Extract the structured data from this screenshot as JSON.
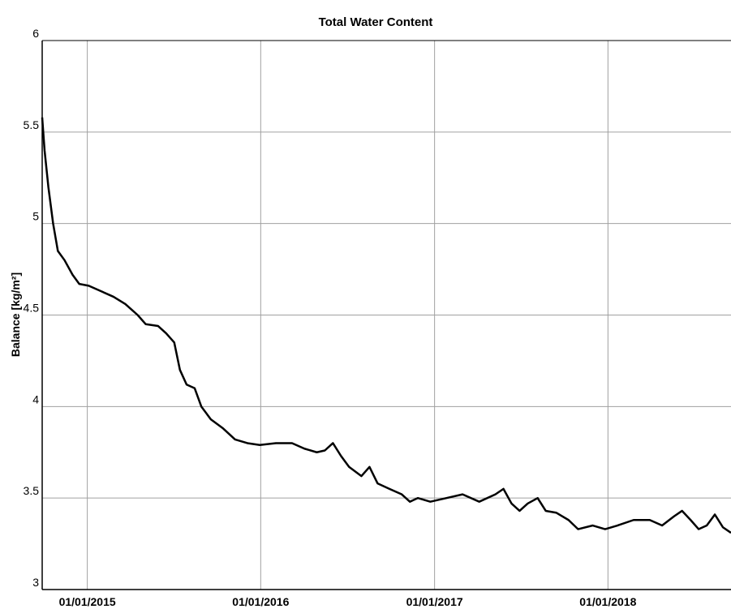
{
  "chart_data": {
    "type": "line",
    "title": "Total Water Content",
    "y_label": "Balance [kg/m²]",
    "x": [
      "2014-09-28",
      "2014-10-03",
      "2014-10-11",
      "2014-10-21",
      "2014-10-31",
      "2014-11-14",
      "2014-12-01",
      "2014-12-15",
      "2015-01-04",
      "2015-01-30",
      "2015-02-25",
      "2015-03-22",
      "2015-04-17",
      "2015-05-04",
      "2015-05-30",
      "2015-06-16",
      "2015-07-03",
      "2015-07-15",
      "2015-07-29",
      "2015-08-15",
      "2015-08-29",
      "2015-09-18",
      "2015-10-14",
      "2015-11-08",
      "2015-12-04",
      "2015-12-30",
      "2016-02-02",
      "2016-03-07",
      "2016-04-02",
      "2016-04-28",
      "2016-05-15",
      "2016-06-01",
      "2016-06-18",
      "2016-07-05",
      "2016-07-31",
      "2016-08-17",
      "2016-09-03",
      "2016-09-28",
      "2016-10-24",
      "2016-11-10",
      "2016-11-27",
      "2016-12-23",
      "2017-01-26",
      "2017-03-01",
      "2017-04-05",
      "2017-05-09",
      "2017-05-26",
      "2017-06-12",
      "2017-06-29",
      "2017-07-16",
      "2017-08-06",
      "2017-08-23",
      "2017-09-14",
      "2017-10-10",
      "2017-10-30",
      "2017-11-30",
      "2017-12-26",
      "2018-01-21",
      "2018-02-24",
      "2018-03-30",
      "2018-04-25",
      "2018-05-20",
      "2018-06-06",
      "2018-06-24",
      "2018-07-11",
      "2018-07-28",
      "2018-08-14",
      "2018-08-31",
      "2018-09-17"
    ],
    "series": [
      {
        "name": "Total Water Content",
        "color": "#000000",
        "values": [
          5.58,
          5.4,
          5.2,
          5.0,
          4.85,
          4.8,
          4.72,
          4.67,
          4.66,
          4.63,
          4.6,
          4.56,
          4.5,
          4.45,
          4.44,
          4.4,
          4.35,
          4.2,
          4.12,
          4.1,
          4.0,
          3.93,
          3.88,
          3.82,
          3.8,
          3.79,
          3.8,
          3.8,
          3.77,
          3.75,
          3.76,
          3.8,
          3.73,
          3.67,
          3.62,
          3.67,
          3.58,
          3.55,
          3.52,
          3.48,
          3.5,
          3.48,
          3.5,
          3.52,
          3.48,
          3.52,
          3.55,
          3.47,
          3.43,
          3.47,
          3.5,
          3.43,
          3.42,
          3.38,
          3.33,
          3.35,
          3.33,
          3.35,
          3.38,
          3.38,
          3.35,
          3.4,
          3.43,
          3.38,
          3.33,
          3.35,
          3.41,
          3.34,
          3.31
        ]
      }
    ],
    "xlim": [
      "2014-09-28",
      "2018-09-17"
    ],
    "xticks": [
      {
        "value": "2015-01-01",
        "label": "01/01/2015"
      },
      {
        "value": "2016-01-01",
        "label": "01/01/2016"
      },
      {
        "value": "2017-01-01",
        "label": "01/01/2017"
      },
      {
        "value": "2018-01-01",
        "label": "01/01/2018"
      }
    ],
    "ylim": [
      3,
      6
    ],
    "yticks": [
      3,
      3.5,
      4,
      4.5,
      5,
      5.5,
      6
    ],
    "grid": true
  }
}
